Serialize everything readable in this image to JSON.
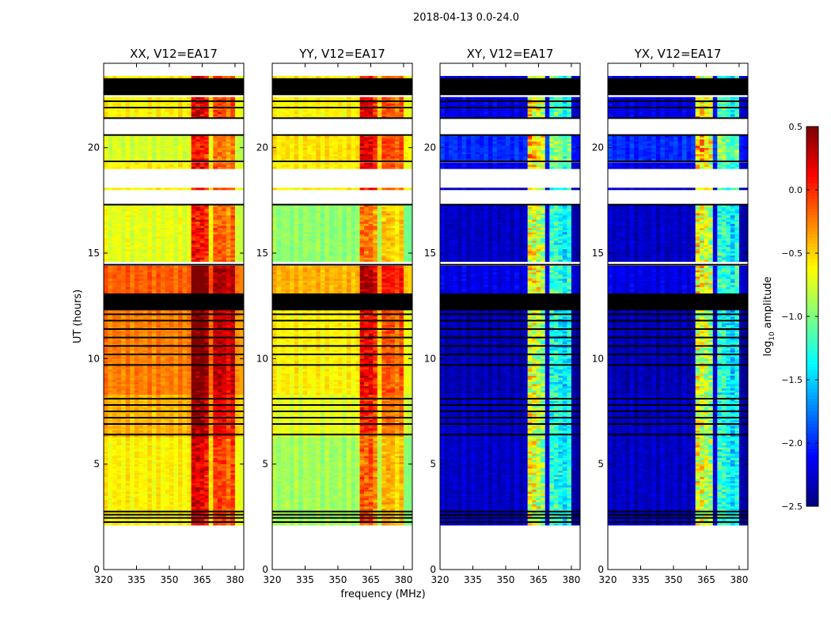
{
  "figure_title": "2018-04-13 0.0-24.0",
  "chart_data": {
    "type": "heatmap",
    "title": "2018-04-13 0.0-24.0",
    "xlabel": "frequency (MHz)",
    "ylabel": "UT (hours)",
    "xlim": [
      320,
      384
    ],
    "ylim": [
      0,
      24
    ],
    "xticks": [
      320,
      335,
      350,
      365,
      380
    ],
    "yticks": [
      0,
      5,
      10,
      15,
      20
    ],
    "colorbar": {
      "label_main": "log",
      "label_sub": "10",
      "label_rest": " amplitude",
      "range": [
        -2.5,
        0.5
      ],
      "ticks": [
        "0.5",
        "0.0",
        "−0.5",
        "−1.0",
        "−1.5",
        "−2.0",
        "−2.5"
      ],
      "tick_values": [
        0.5,
        0.0,
        -0.5,
        -1.0,
        -1.5,
        -2.0,
        -2.5
      ],
      "colormap": "jet"
    },
    "time_segments": [
      {
        "start": 2.1,
        "end": 6.3,
        "kind": "data"
      },
      {
        "start": 6.3,
        "end": 8.3,
        "kind": "data"
      },
      {
        "start": 8.3,
        "end": 12.3,
        "kind": "data"
      },
      {
        "start": 12.3,
        "end": 13.1,
        "kind": "flagged"
      },
      {
        "start": 13.1,
        "end": 14.4,
        "kind": "data"
      },
      {
        "start": 14.6,
        "end": 17.3,
        "kind": "data"
      },
      {
        "start": 18.0,
        "end": 18.1,
        "kind": "data"
      },
      {
        "start": 19.0,
        "end": 19.3,
        "kind": "data"
      },
      {
        "start": 19.4,
        "end": 20.6,
        "kind": "data"
      },
      {
        "start": 21.4,
        "end": 22.4,
        "kind": "data"
      },
      {
        "start": 22.5,
        "end": 23.3,
        "kind": "flagged"
      },
      {
        "start": 23.3,
        "end": 23.4,
        "kind": "data"
      }
    ],
    "flag_lines_hours": [
      2.25,
      2.45,
      2.6,
      2.75,
      6.4,
      6.9,
      7.2,
      7.5,
      7.8,
      8.1,
      9.7,
      10.2,
      10.6,
      11.0,
      11.4,
      11.8,
      12.1,
      14.45,
      17.3,
      19.35,
      20.6,
      21.4,
      21.9,
      22.2
    ],
    "rfi_channels_mhz": [
      {
        "lo": 361,
        "hi": 365,
        "strength": 0.9
      },
      {
        "lo": 365,
        "hi": 369,
        "strength": 0.8
      },
      {
        "lo": 371,
        "hi": 375,
        "strength": 0.6
      },
      {
        "lo": 375,
        "hi": 380,
        "strength": 0.5
      }
    ],
    "panels": [
      {
        "title": "XX, V12=EA17",
        "rfi_gain": 1.0,
        "segment_levels": [
          -0.6,
          -0.4,
          -0.25,
          -3,
          -0.15,
          -0.7,
          -0.6,
          -0.6,
          -0.75,
          -0.6,
          -3,
          -0.6
        ]
      },
      {
        "title": "YY, V12=EA17",
        "rfi_gain": 0.9,
        "segment_levels": [
          -0.9,
          -0.7,
          -0.6,
          -3,
          -0.4,
          -0.95,
          -0.6,
          -0.6,
          -0.55,
          -0.6,
          -3,
          -0.6
        ]
      },
      {
        "title": "XY, V12=EA17",
        "rfi_gain": 1.9,
        "segment_levels": [
          -2.3,
          -2.3,
          -2.35,
          -3,
          -2.2,
          -2.3,
          -2.3,
          -2.2,
          -2.0,
          -2.2,
          -3,
          -2.2
        ]
      },
      {
        "title": "YX, V12=EA17",
        "rfi_gain": 1.9,
        "segment_levels": [
          -2.3,
          -2.3,
          -2.35,
          -3,
          -2.2,
          -2.3,
          -2.3,
          -2.2,
          -2.0,
          -2.2,
          -3,
          -2.2
        ]
      }
    ]
  }
}
